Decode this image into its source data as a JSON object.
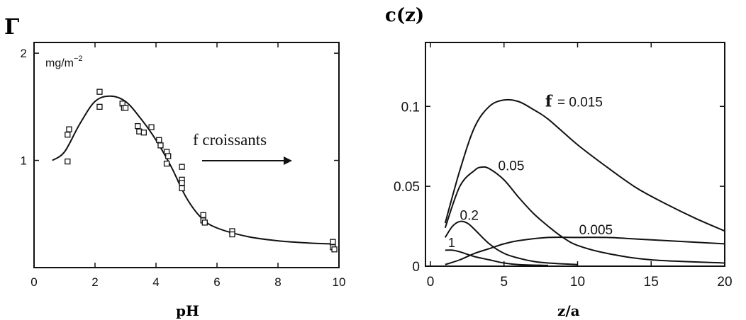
{
  "chart_data": [
    {
      "type": "scatter",
      "ylabel": "Γ",
      "units": "mg/m",
      "units_exp": "−2",
      "xlabel": "pH",
      "xlim": [
        0,
        10
      ],
      "ylim": [
        0,
        2.1
      ],
      "xticks": [
        0,
        2,
        4,
        6,
        8,
        10
      ],
      "yticks": [
        1,
        2
      ],
      "annotation": "f croissants",
      "grid": false,
      "points": [
        {
          "x": 1.1,
          "y": 1.24
        },
        {
          "x": 1.15,
          "y": 1.29
        },
        {
          "x": 1.1,
          "y": 0.99
        },
        {
          "x": 2.15,
          "y": 1.64
        },
        {
          "x": 2.15,
          "y": 1.5
        },
        {
          "x": 2.9,
          "y": 1.53
        },
        {
          "x": 2.95,
          "y": 1.49
        },
        {
          "x": 3.0,
          "y": 1.49
        },
        {
          "x": 3.4,
          "y": 1.32
        },
        {
          "x": 3.45,
          "y": 1.27
        },
        {
          "x": 3.6,
          "y": 1.26
        },
        {
          "x": 3.85,
          "y": 1.31
        },
        {
          "x": 4.1,
          "y": 1.19
        },
        {
          "x": 4.15,
          "y": 1.14
        },
        {
          "x": 4.35,
          "y": 1.08
        },
        {
          "x": 4.4,
          "y": 1.04
        },
        {
          "x": 4.35,
          "y": 0.97
        },
        {
          "x": 4.85,
          "y": 0.94
        },
        {
          "x": 4.85,
          "y": 0.82
        },
        {
          "x": 4.85,
          "y": 0.79
        },
        {
          "x": 4.85,
          "y": 0.74
        },
        {
          "x": 5.55,
          "y": 0.49
        },
        {
          "x": 5.55,
          "y": 0.44
        },
        {
          "x": 5.6,
          "y": 0.42
        },
        {
          "x": 6.5,
          "y": 0.34
        },
        {
          "x": 6.5,
          "y": 0.31
        },
        {
          "x": 9.8,
          "y": 0.24
        },
        {
          "x": 9.8,
          "y": 0.19
        },
        {
          "x": 9.85,
          "y": 0.17
        }
      ],
      "fit": {
        "x": [
          0.6,
          1.0,
          1.5,
          2.0,
          2.5,
          3.0,
          3.5,
          4.0,
          4.5,
          5.0,
          5.5,
          6.0,
          7.0,
          8.0,
          9.0,
          9.8
        ],
        "y": [
          1.0,
          1.08,
          1.34,
          1.55,
          1.6,
          1.55,
          1.39,
          1.19,
          0.94,
          0.65,
          0.46,
          0.37,
          0.29,
          0.25,
          0.23,
          0.22
        ]
      }
    },
    {
      "type": "line",
      "ylabel": "c(z)",
      "xlabel": "z/a",
      "xlim": [
        0,
        20
      ],
      "ylim": [
        0,
        0.14
      ],
      "xticks": [
        0,
        5,
        10,
        15,
        20
      ],
      "yticks": [
        0,
        0.05,
        0.1
      ],
      "grid": false,
      "series_prefix": "f",
      "series": [
        {
          "name": "= 0.015",
          "x": [
            1,
            2,
            3,
            4,
            5,
            6,
            7,
            8,
            10,
            12,
            14,
            16,
            18,
            20
          ],
          "y": [
            0.027,
            0.06,
            0.087,
            0.1,
            0.104,
            0.103,
            0.098,
            0.092,
            0.076,
            0.062,
            0.049,
            0.039,
            0.03,
            0.022
          ]
        },
        {
          "name": "0.05",
          "x": [
            1,
            2,
            3,
            3.5,
            4,
            5,
            6,
            7,
            8,
            9,
            10,
            12,
            15,
            20
          ],
          "y": [
            0.024,
            0.05,
            0.06,
            0.062,
            0.061,
            0.054,
            0.043,
            0.033,
            0.025,
            0.018,
            0.013,
            0.008,
            0.004,
            0.002
          ]
        },
        {
          "name": "0.2",
          "x": [
            1,
            1.5,
            2,
            2.5,
            3,
            4,
            5,
            6,
            7,
            8,
            10
          ],
          "y": [
            0.018,
            0.025,
            0.028,
            0.027,
            0.023,
            0.014,
            0.008,
            0.005,
            0.003,
            0.002,
            0.001
          ]
        },
        {
          "name": "1",
          "x": [
            1,
            1.5,
            2,
            3,
            4,
            5,
            6,
            8
          ],
          "y": [
            0.01,
            0.01,
            0.009,
            0.006,
            0.004,
            0.002,
            0.001,
            0.0005
          ]
        },
        {
          "name": "0.005",
          "x": [
            1,
            2,
            3,
            4,
            5,
            6,
            8,
            10,
            12,
            14,
            16,
            18,
            20
          ],
          "y": [
            0.001,
            0.004,
            0.008,
            0.011,
            0.014,
            0.016,
            0.018,
            0.018,
            0.018,
            0.017,
            0.016,
            0.015,
            0.014
          ]
        }
      ]
    }
  ]
}
